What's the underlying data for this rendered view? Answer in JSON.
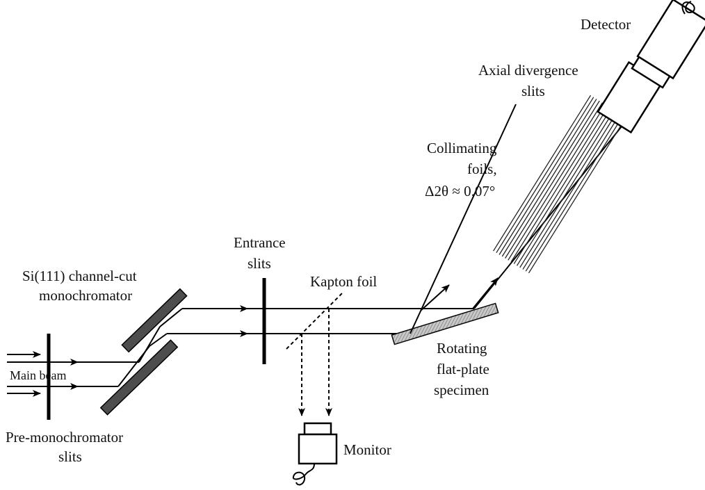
{
  "labels": {
    "detector": "Detector",
    "axial_1": "Axial divergence",
    "axial_2": "slits",
    "collimating_1": "Collimating",
    "collimating_2": "foils,",
    "collimating_3": "Δ2θ ≈ 0.07°",
    "entrance_1": "Entrance",
    "entrance_2": "slits",
    "kapton": "Kapton foil",
    "mono_1": "Si(111) channel-cut",
    "mono_2": "monochromator",
    "main_beam": "Main beam",
    "premono_1": "Pre-monochromator",
    "premono_2": "slits",
    "rotating_1": "Rotating",
    "rotating_2": "flat-plate",
    "rotating_3": "specimen",
    "monitor": "Monitor"
  },
  "colors": {
    "crystal_fill": "#4d4d4d",
    "specimen_fill": "#b0b0b0",
    "line": "#000000"
  }
}
